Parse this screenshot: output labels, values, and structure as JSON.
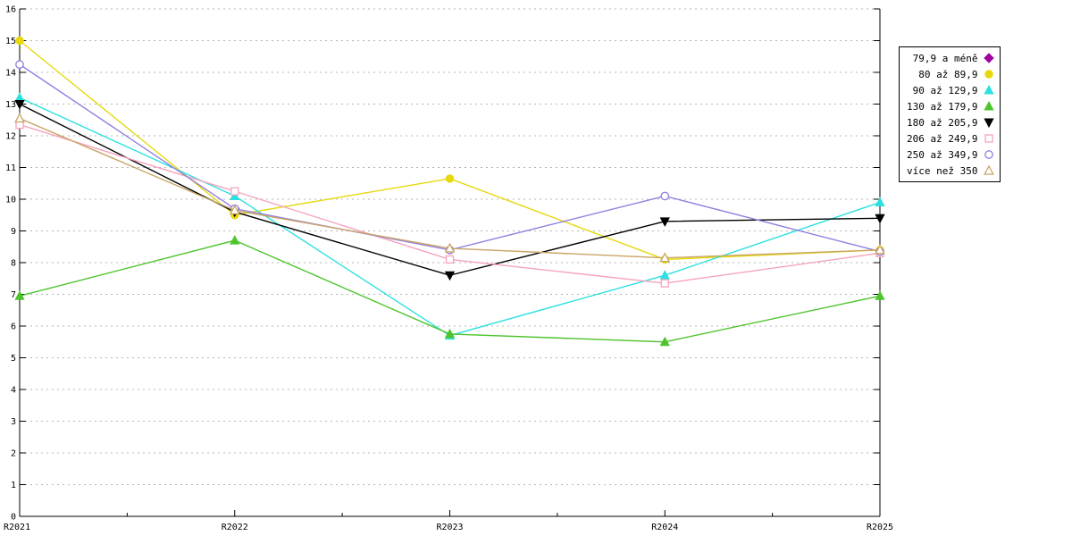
{
  "chart_data": {
    "type": "line",
    "title": "",
    "xlabel": "",
    "ylabel": "",
    "x": [
      "R2021",
      "R2022",
      "R2023",
      "R2024",
      "R2025"
    ],
    "ylim": [
      0,
      16
    ],
    "ytick_step": 1,
    "grid": "horizontal-dashed",
    "legend_position": "outside-top-right",
    "series": [
      {
        "name": "79,9 a méně",
        "color": "#a000a0",
        "marker": "diamond",
        "fill": "filled",
        "values": []
      },
      {
        "name": "80 až 89,9",
        "color": "#e6d80a",
        "marker": "circle",
        "fill": "filled",
        "values": [
          15.0,
          9.5,
          10.65,
          8.1,
          8.4
        ]
      },
      {
        "name": "90 až 129,9",
        "color": "#2ce0e0",
        "marker": "triangle",
        "fill": "filled",
        "values": [
          13.2,
          10.1,
          5.7,
          7.6,
          9.9
        ]
      },
      {
        "name": "130 až 179,9",
        "color": "#4dc42d",
        "marker": "triangle",
        "fill": "filled",
        "values": [
          6.95,
          8.7,
          5.75,
          5.5,
          6.95
        ]
      },
      {
        "name": "180 až 205,9",
        "color": "#000000",
        "marker": "triangle-down",
        "fill": "filled",
        "values": [
          13.0,
          9.6,
          7.6,
          9.3,
          9.4
        ]
      },
      {
        "name": "206 až 249,9",
        "color": "#f5a3be",
        "marker": "square",
        "fill": "open",
        "values": [
          12.35,
          10.25,
          8.1,
          7.35,
          8.3
        ]
      },
      {
        "name": "250 až 349,9",
        "color": "#8f7fe0",
        "marker": "circle",
        "fill": "open",
        "values": [
          14.25,
          9.7,
          8.4,
          10.1,
          8.35
        ]
      },
      {
        "name": "více než 350",
        "color": "#c9a465",
        "marker": "triangle",
        "fill": "open",
        "values": [
          12.55,
          9.65,
          8.45,
          8.15,
          8.4
        ]
      }
    ]
  }
}
